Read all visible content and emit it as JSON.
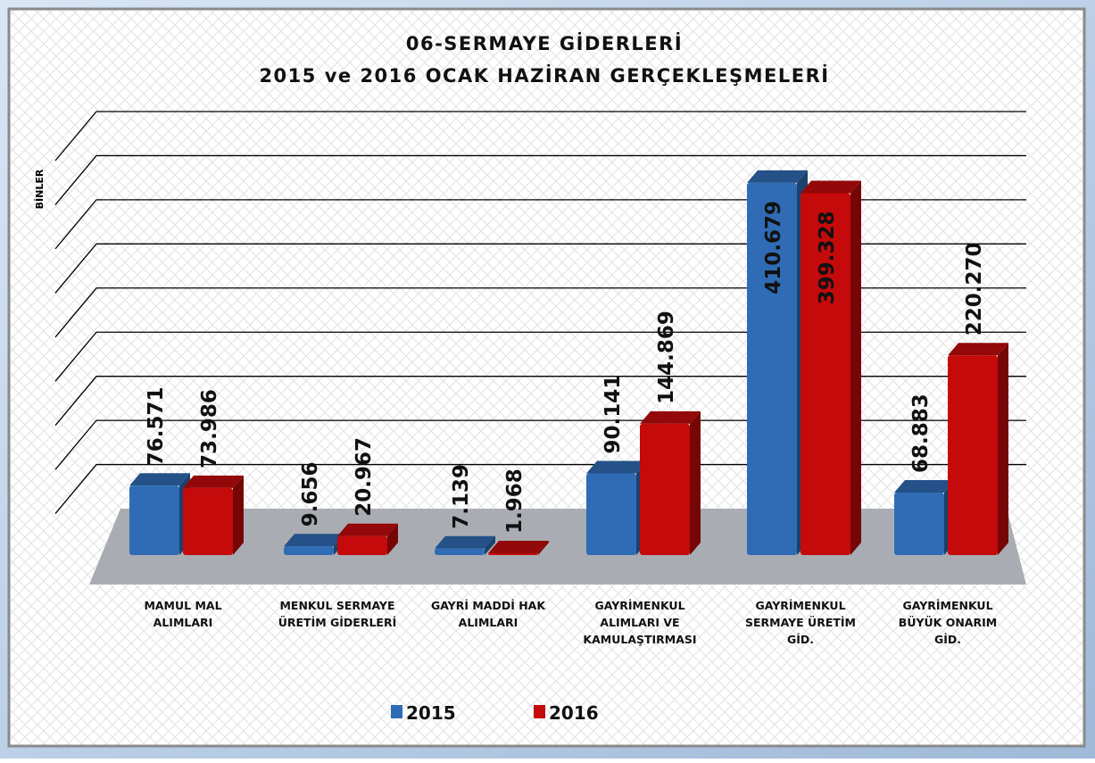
{
  "chart_data": {
    "type": "bar3d",
    "title": "06-SERMAYE GİDERLERİ",
    "subtitle": "2015 ve 2016 OCAK HAZİRAN GERÇEKLEŞMELERİ",
    "y_axis_label": "BİNLER",
    "categories": [
      "MAMUL MAL ALIMLARI",
      "MENKUL SERMAYE ÜRETİM GİDERLERİ",
      "GAYRİ MADDİ HAK ALIMLARI",
      "GAYRİMENKUL ALIMLARI VE KAMULAŞTIRMASI",
      "GAYRİMENKUL SERMAYE ÜRETİM GİD.",
      "GAYRİMENKUL BÜYÜK ONARIM GİD."
    ],
    "series": [
      {
        "name": "2015",
        "color": "#2f6cb5",
        "values": [
          76571,
          9656,
          7139,
          90141,
          410679,
          68883
        ],
        "value_labels": [
          "76.571",
          "9.656",
          "7.139",
          "90.141",
          "410.679",
          "68.883"
        ]
      },
      {
        "name": "2016",
        "color": "#c40a0a",
        "values": [
          73986,
          20967,
          1968,
          144869,
          399328,
          220270
        ],
        "value_labels": [
          "73.986",
          "20.967",
          "1.968",
          "144.869",
          "399.328",
          "220.270"
        ]
      }
    ],
    "ylim": [
      0,
      450000
    ],
    "yticks": [
      0,
      50000,
      100000,
      150000,
      200000,
      250000,
      300000,
      350000,
      400000,
      450000
    ],
    "grid": true,
    "legend": "bottom"
  }
}
